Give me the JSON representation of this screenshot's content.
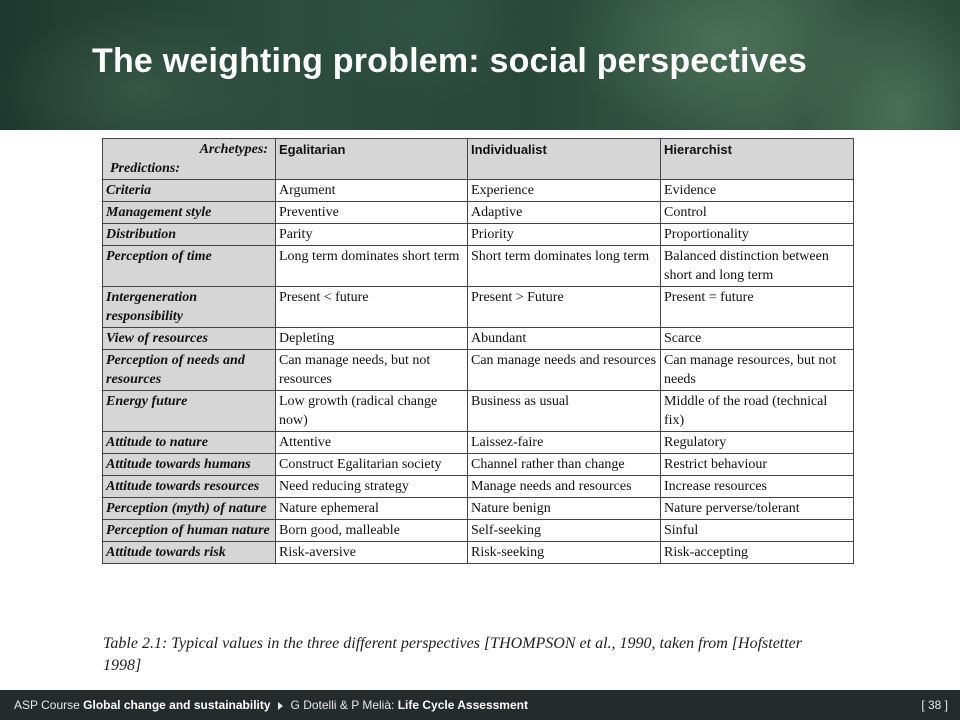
{
  "slide": {
    "title": "The weighting problem: social perspectives"
  },
  "table": {
    "corner_top": "Archetypes:",
    "corner_bottom": "Predictions:",
    "columns": [
      "Egalitarian",
      "Individualist",
      "Hierarchist"
    ],
    "rows": [
      {
        "label": "Criteria",
        "cells": [
          "Argument",
          "Experience",
          "Evidence"
        ]
      },
      {
        "label": "Management style",
        "cells": [
          "Preventive",
          "Adaptive",
          "Control"
        ]
      },
      {
        "label": "Distribution",
        "cells": [
          "Parity",
          "Priority",
          "Proportionality"
        ]
      },
      {
        "label": "Perception of time",
        "cells": [
          "Long term dominates short term",
          "Short term dominates long term",
          "Balanced distinction between short and long term"
        ]
      },
      {
        "label": "Intergeneration responsibility",
        "cells": [
          "Present < future",
          "Present > Future",
          "Present = future"
        ]
      },
      {
        "label": "View of resources",
        "cells": [
          "Depleting",
          "Abundant",
          "Scarce"
        ]
      },
      {
        "label": "Perception of needs and resources",
        "cells": [
          "Can manage needs, but not resources",
          "Can manage needs and resources",
          "Can manage resources, but not needs"
        ]
      },
      {
        "label": "Energy future",
        "cells": [
          "Low growth (radical change now)",
          "Business as usual",
          "Middle of the road (technical fix)"
        ]
      },
      {
        "label": "Attitude to nature",
        "cells": [
          "Attentive",
          "Laissez-faire",
          "Regulatory"
        ]
      },
      {
        "label": "Attitude towards humans",
        "cells": [
          "Construct Egalitarian society",
          "Channel rather than change",
          "Restrict behaviour"
        ]
      },
      {
        "label": "Attitude towards resources",
        "cells": [
          "Need reducing strategy",
          "Manage needs and resources",
          "Increase resources"
        ]
      },
      {
        "label": "Perception (myth) of nature",
        "cells": [
          "Nature ephemeral",
          "Nature benign",
          "Nature perverse/tolerant"
        ]
      },
      {
        "label": "Perception of human nature",
        "cells": [
          "Born good, malleable",
          "Self-seeking",
          "Sinful"
        ]
      },
      {
        "label": "Attitude towards risk",
        "cells": [
          "Risk-aversive",
          "Risk-seeking",
          "Risk-accepting"
        ]
      }
    ]
  },
  "caption": {
    "before": "Table 2.1: Typical values in the three different perspectives [T",
    "smallcaps": "HOMPSON",
    "after": " et al., 1990, taken from [Hofstetter 1998]"
  },
  "footer": {
    "course_prefix": "ASP Course ",
    "course_name": "Global change and sustainability",
    "authors": "G Dotelli & P Melià: ",
    "lecture": "Life Cycle Assessment",
    "page": "[ 38 ]"
  }
}
